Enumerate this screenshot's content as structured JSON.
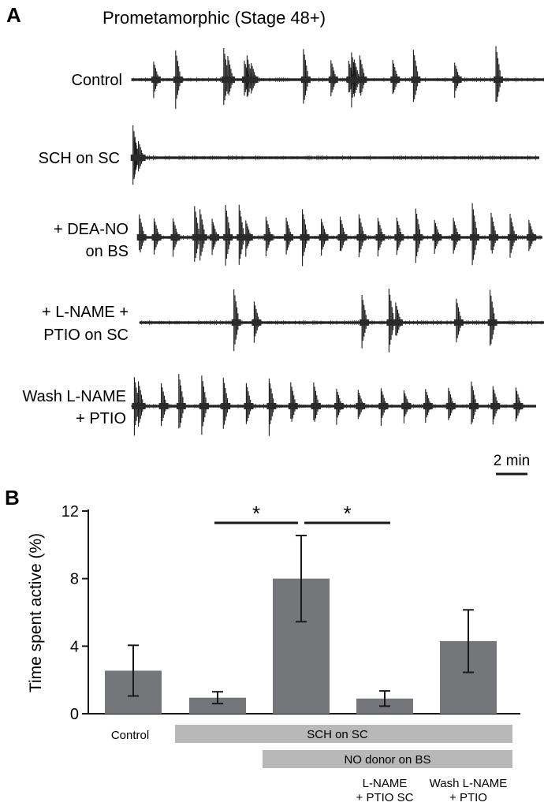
{
  "panel_a": {
    "letter": "A",
    "title": "Prometamorphic (Stage 48+)",
    "traces": [
      {
        "label_lines": [
          "Control"
        ],
        "bursts": [
          0.16,
          0.32,
          0.67,
          0.7,
          0.82,
          0.84,
          0.87,
          1.25,
          1.45,
          1.58,
          1.6,
          1.62,
          1.66,
          1.9,
          2.05,
          2.35,
          2.65
        ],
        "big_bursts": [
          0.32,
          0.67,
          1.25,
          1.6,
          2.05,
          2.65
        ]
      },
      {
        "label_lines": [
          "SCH on SC"
        ],
        "bursts": [
          0.01,
          0.02,
          0.05
        ],
        "big_bursts": [
          0.01
        ]
      },
      {
        "label_lines": [
          "+ DEA-NO",
          "on BS"
        ],
        "bursts": [
          0.01,
          0.12,
          0.26,
          0.42,
          0.46,
          0.55,
          0.65,
          0.75,
          0.8,
          0.95,
          1.1,
          1.22,
          1.36,
          1.5,
          1.64,
          1.78,
          1.92,
          2.06,
          2.2,
          2.34,
          2.48,
          2.62,
          2.76,
          2.9
        ],
        "big_bursts": [
          0.42,
          0.46,
          0.65,
          0.75,
          1.22,
          2.06,
          2.48
        ]
      },
      {
        "label_lines": [
          "+ L-NAME +",
          "PTIO on SC"
        ],
        "bursts": [
          0.7,
          0.85,
          1.65,
          1.85,
          1.9,
          2.35,
          2.6
        ],
        "big_bursts": [
          0.7,
          1.65,
          1.85,
          2.6
        ]
      },
      {
        "label_lines": [
          "Wash L-NAME",
          "+ PTIO"
        ],
        "bursts": [
          0.02,
          0.05,
          0.22,
          0.35,
          0.52,
          0.68,
          0.85,
          1.02,
          1.18,
          1.35,
          1.52,
          1.68,
          1.85,
          2.02,
          2.18,
          2.35,
          2.52,
          2.68,
          2.85
        ],
        "big_bursts": [
          0.02,
          0.35,
          0.52,
          0.68,
          1.02
        ]
      }
    ],
    "scale_bar_label": "2 min"
  },
  "panel_b": {
    "letter": "B",
    "significance_marker": "*",
    "condition_bars": [
      {
        "label": "SCH on SC",
        "from": 1,
        "to": 4
      },
      {
        "label": "NO donor on BS",
        "from": 2,
        "to": 4
      }
    ],
    "bar_color": "#75767a",
    "condition_bar_color": "#b8b8b8"
  },
  "chart_data": {
    "type": "bar",
    "categories": [
      "Control",
      "",
      "",
      "L-NAME\n+ PTIO SC",
      "Wash L-NAME\n+ PTIO"
    ],
    "values": [
      2.55,
      0.95,
      8.0,
      0.9,
      4.3
    ],
    "error": [
      1.5,
      0.35,
      2.55,
      0.45,
      1.85
    ],
    "xlabel": "",
    "ylabel": "Time spent active (%)",
    "ylim": [
      0,
      12
    ],
    "yticks": [
      0,
      4,
      8,
      12
    ],
    "significance": [
      {
        "between": [
          1,
          2
        ],
        "label": "*"
      },
      {
        "between": [
          2,
          3
        ],
        "label": "*"
      }
    ],
    "grid": false,
    "legend": "none"
  }
}
